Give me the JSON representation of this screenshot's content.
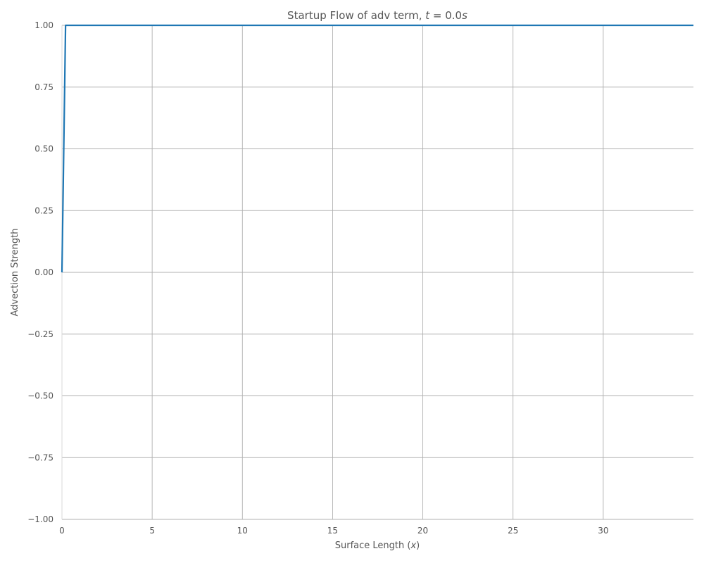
{
  "chart_data": {
    "type": "line",
    "title": "Startup Flow of adv term, t = 0.0s",
    "title_parts": {
      "prefix": "Startup Flow of adv term, ",
      "var": "t",
      "equals": " = 0.0",
      "unit": "s"
    },
    "xlabel": "Surface Length (x)",
    "xlabel_parts": {
      "prefix": "Surface Length (",
      "var": "x",
      "suffix": ")"
    },
    "ylabel": "Advection Strength",
    "xlim": [
      0,
      35
    ],
    "ylim": [
      -1.0,
      1.0
    ],
    "x_ticks": [
      0,
      5,
      10,
      15,
      20,
      25,
      30
    ],
    "x_tick_labels": [
      "0",
      "5",
      "10",
      "15",
      "20",
      "25",
      "30"
    ],
    "y_ticks": [
      -1.0,
      -0.75,
      -0.5,
      -0.25,
      0.0,
      0.25,
      0.5,
      0.75,
      1.0
    ],
    "y_tick_labels": [
      "−1.00",
      "−0.75",
      "−0.50",
      "−0.25",
      "0.00",
      "0.25",
      "0.50",
      "0.75",
      "1.00"
    ],
    "grid": true,
    "series": [
      {
        "color": "#1f77b4",
        "x": [
          0.0,
          0.2,
          35.0
        ],
        "y": [
          0.0,
          1.0,
          1.0
        ]
      }
    ]
  }
}
